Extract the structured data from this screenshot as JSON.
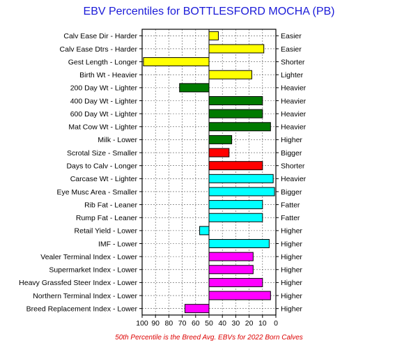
{
  "chart_data": {
    "type": "bar",
    "orientation": "horizontal",
    "title": "EBV Percentiles for BOTTLESFORD MOCHA (PB)",
    "footnote": "50th Percentile is the Breed Avg. EBVs for 2022 Born Calves",
    "x_axis": {
      "range": [
        100,
        0
      ],
      "reversed": true,
      "ticks": [
        "100",
        "90",
        "80",
        "70",
        "60",
        "50",
        "40",
        "30",
        "20",
        "10",
        "0"
      ],
      "baseline": 50
    },
    "grid": true,
    "traits": [
      {
        "left_label": "Calv Ease Dir - Harder",
        "right_label": "Easier",
        "value": 43,
        "color": "#ffff00"
      },
      {
        "left_label": "Calv Ease Dtrs - Harder",
        "right_label": "Easier",
        "value": 9,
        "color": "#ffff00"
      },
      {
        "left_label": "Gest Length - Longer",
        "right_label": "Shorter",
        "value": 99,
        "color": "#ffff00"
      },
      {
        "left_label": "Birth Wt - Heavier",
        "right_label": "Lighter",
        "value": 18,
        "color": "#ffff00"
      },
      {
        "left_label": "200 Day Wt - Lighter",
        "right_label": "Heavier",
        "value": 72,
        "color": "#007a00"
      },
      {
        "left_label": "400 Day Wt - Lighter",
        "right_label": "Heavier",
        "value": 10,
        "color": "#007a00"
      },
      {
        "left_label": "600 Day Wt - Lighter",
        "right_label": "Heavier",
        "value": 10,
        "color": "#007a00"
      },
      {
        "left_label": "Mat Cow Wt - Lighter",
        "right_label": "Heavier",
        "value": 4,
        "color": "#007a00"
      },
      {
        "left_label": "Milk - Lower",
        "right_label": "Higher",
        "value": 33,
        "color": "#007a00"
      },
      {
        "left_label": "Scrotal Size - Smaller",
        "right_label": "Bigger",
        "value": 35,
        "color": "#ff0000"
      },
      {
        "left_label": "Days to Calv - Longer",
        "right_label": "Shorter",
        "value": 10,
        "color": "#ff0000"
      },
      {
        "left_label": "Carcase Wt - Lighter",
        "right_label": "Heavier",
        "value": 2,
        "color": "#00ffff"
      },
      {
        "left_label": "Eye Musc Area - Smaller",
        "right_label": "Bigger",
        "value": 1,
        "color": "#00ffff"
      },
      {
        "left_label": "Rib Fat - Leaner",
        "right_label": "Fatter",
        "value": 10,
        "color": "#00ffff"
      },
      {
        "left_label": "Rump Fat - Leaner",
        "right_label": "Fatter",
        "value": 10,
        "color": "#00ffff"
      },
      {
        "left_label": "Retail Yield - Lower",
        "right_label": "Higher",
        "value": 57,
        "color": "#00ffff"
      },
      {
        "left_label": "IMF - Lower",
        "right_label": "Higher",
        "value": 5,
        "color": "#00ffff"
      },
      {
        "left_label": "Vealer Terminal Index - Lower",
        "right_label": "Higher",
        "value": 17,
        "color": "#ff00ff"
      },
      {
        "left_label": "Supermarket Index - Lower",
        "right_label": "Higher",
        "value": 17,
        "color": "#ff00ff"
      },
      {
        "left_label": "Heavy Grassfed Steer Index - Lower",
        "right_label": "Higher",
        "value": 10,
        "color": "#ff00ff"
      },
      {
        "left_label": "Northern Terminal Index - Lower",
        "right_label": "Higher",
        "value": 4,
        "color": "#ff00ff"
      },
      {
        "left_label": "Breed Replacement Index - Lower",
        "right_label": "Higher",
        "value": 68,
        "color": "#ff00ff"
      }
    ]
  }
}
